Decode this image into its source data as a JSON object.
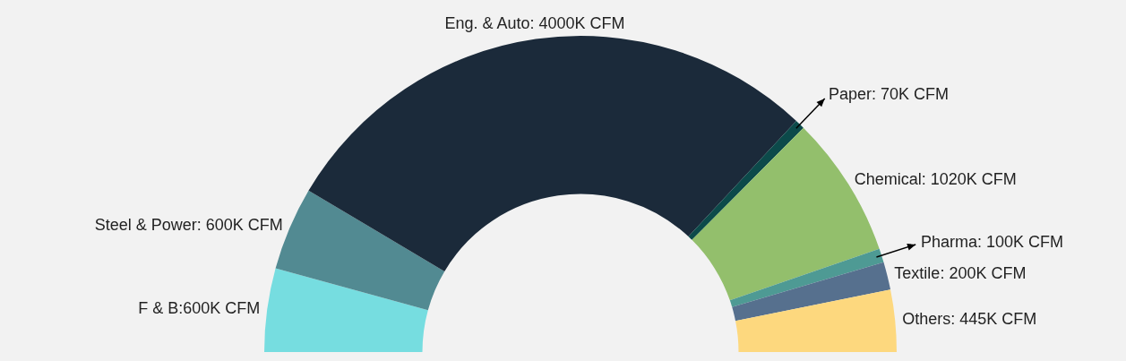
{
  "chart_data": {
    "type": "donut",
    "categories": [
      "F & B:600K CFM",
      "Steel & Power: 600K CFM",
      "Eng. & Auto: 4000K CFM",
      "Paper: 70K CFM",
      "Chemical: 1020K CFM",
      "Pharma: 100K CFM",
      "Textile: 200K CFM",
      "Others: 445K CFM"
    ],
    "values": [
      600,
      600,
      4000,
      70,
      1020,
      100,
      200,
      445
    ],
    "colors": [
      "#76dde0",
      "#528a92",
      "#1b2a3a",
      "#0c4a4a",
      "#93bf6c",
      "#4e9a94",
      "#56708e",
      "#fdd87e"
    ]
  }
}
